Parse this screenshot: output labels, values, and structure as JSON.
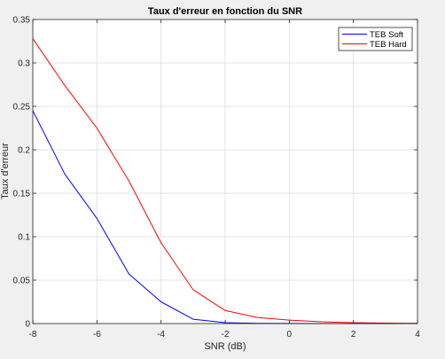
{
  "chart_data": {
    "type": "line",
    "title": "Taux d'erreur en fonction du SNR",
    "xlabel": "SNR (dB)",
    "ylabel": "Taux d'erreur",
    "xlim": [
      -8,
      4
    ],
    "ylim": [
      0,
      0.35
    ],
    "xticks": [
      -8,
      -6,
      -4,
      -2,
      0,
      2,
      4
    ],
    "xtick_labels": [
      "-8",
      "-6",
      "-4",
      "-2",
      "0",
      "2",
      "4"
    ],
    "yticks": [
      0,
      0.05,
      0.1,
      0.15,
      0.2,
      0.25,
      0.3,
      0.35
    ],
    "ytick_labels": [
      "0",
      "0.05",
      "0.1",
      "0.15",
      "0.2",
      "0.25",
      "0.3",
      "0.35"
    ],
    "grid": true,
    "legend_position": "top-right",
    "series": [
      {
        "name": "TEB Soft",
        "color": "#0000ff",
        "x": [
          -8,
          -7,
          -6,
          -5,
          -4,
          -3,
          -2,
          -1,
          0,
          1,
          2,
          3,
          4
        ],
        "y": [
          0.245,
          0.172,
          0.121,
          0.057,
          0.025,
          0.005,
          0.001,
          0.0003,
          0.0001,
          0,
          0,
          0,
          0
        ]
      },
      {
        "name": "TEB Hard",
        "color": "#ff0000",
        "x": [
          -8,
          -7,
          -6,
          -5,
          -4,
          -3,
          -2,
          -1,
          0,
          1,
          2,
          3,
          4
        ],
        "y": [
          0.328,
          0.274,
          0.225,
          0.164,
          0.093,
          0.039,
          0.015,
          0.007,
          0.004,
          0.002,
          0.001,
          0.0005,
          0.0003
        ]
      }
    ]
  }
}
